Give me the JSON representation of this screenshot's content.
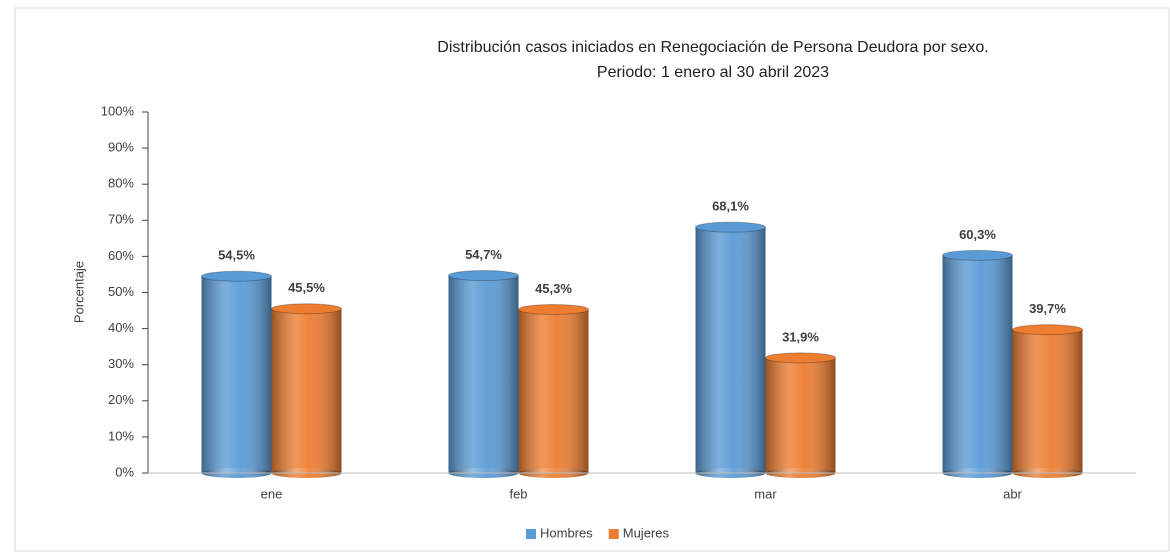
{
  "chart_data": {
    "type": "bar",
    "title": "Distribución casos iniciados en Renegociación de Persona Deudora por sexo.",
    "subtitle": "Periodo: 1 enero al 30 abril 2023",
    "y_label": "Porcentaje",
    "categories": [
      "ene",
      "feb",
      "mar",
      "abr"
    ],
    "series": [
      {
        "name": "Hombres",
        "color": "#5b9bd5",
        "values": [
          54.5,
          54.7,
          68.1,
          60.3
        ],
        "value_labels": [
          "54,5%",
          "54,7%",
          "68,1%",
          "60,3%"
        ]
      },
      {
        "name": "Mujeres",
        "color": "#ed7d31",
        "values": [
          45.5,
          45.3,
          31.9,
          39.7
        ],
        "value_labels": [
          "45,5%",
          "45,3%",
          "31,9%",
          "39,7%"
        ]
      }
    ],
    "ylim": [
      0,
      100
    ],
    "yticks": [
      {
        "value": 0,
        "label": "0%"
      },
      {
        "value": 10,
        "label": "10%"
      },
      {
        "value": 20,
        "label": "20%"
      },
      {
        "value": 30,
        "label": "30%"
      },
      {
        "value": 40,
        "label": "40%"
      },
      {
        "value": 50,
        "label": "50%"
      },
      {
        "value": 60,
        "label": "60%"
      },
      {
        "value": 70,
        "label": "70%"
      },
      {
        "value": 80,
        "label": "80%"
      },
      {
        "value": 90,
        "label": "90%"
      },
      {
        "value": 100,
        "label": "100%"
      }
    ],
    "legend": "bottom"
  }
}
